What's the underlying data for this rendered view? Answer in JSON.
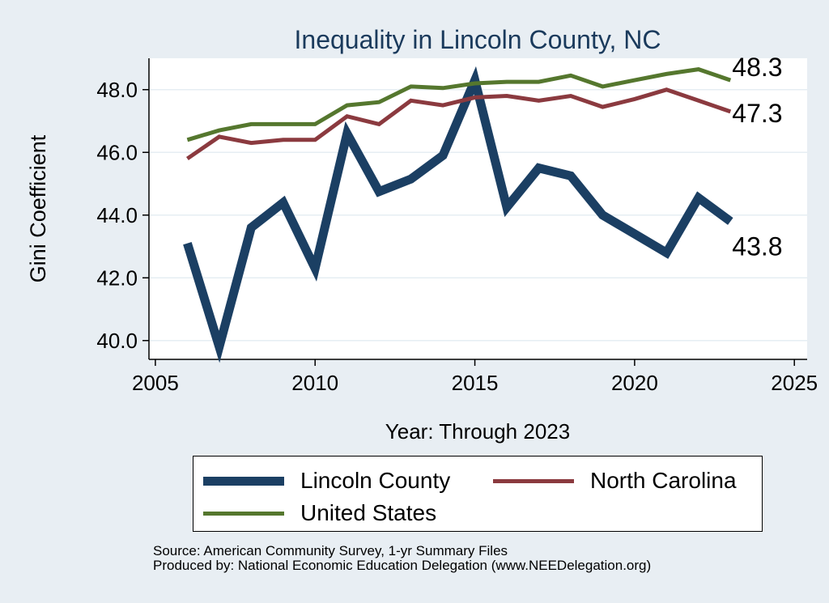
{
  "colors": {
    "background": "#e8eef3",
    "plot_background": "#ffffff",
    "title": "#1a3a5c",
    "gridline": "#e6eef3",
    "lincoln": "#1b3f63",
    "north_carolina": "#8b3a3f",
    "united_states": "#55772e"
  },
  "chart_data": {
    "type": "line",
    "title": "Inequality in Lincoln County, NC",
    "xlabel": "Year: Through 2023",
    "ylabel": "Gini Coefficient",
    "xlim": [
      2004.8,
      2025.4
    ],
    "ylim": [
      39.4,
      49.0
    ],
    "xticks": [
      2005,
      2010,
      2015,
      2020,
      2025
    ],
    "xtick_labels": [
      "2005",
      "2010",
      "2015",
      "2020",
      "2025"
    ],
    "yticks": [
      40,
      42,
      44,
      46,
      48
    ],
    "ytick_labels": [
      "40.0",
      "42.0",
      "44.0",
      "46.0",
      "48.0"
    ],
    "x": [
      2006,
      2007,
      2008,
      2009,
      2010,
      2011,
      2012,
      2013,
      2014,
      2015,
      2016,
      2017,
      2018,
      2019,
      2020,
      2021,
      2022,
      2023
    ],
    "series": [
      {
        "name": "Lincoln County",
        "color_key": "lincoln",
        "stroke": "thick",
        "end_label": "43.8",
        "values": [
          43.1,
          39.8,
          43.6,
          44.4,
          42.3,
          46.6,
          44.75,
          45.15,
          45.9,
          48.3,
          44.25,
          45.5,
          45.25,
          44.0,
          43.4,
          42.8,
          44.55,
          43.8
        ]
      },
      {
        "name": "North Carolina",
        "color_key": "north_carolina",
        "stroke": "thin",
        "end_label": "47.3",
        "values": [
          45.8,
          46.5,
          46.3,
          46.4,
          46.4,
          47.15,
          46.9,
          47.65,
          47.5,
          47.75,
          47.8,
          47.65,
          47.8,
          47.45,
          47.7,
          48.0,
          47.65,
          47.3
        ]
      },
      {
        "name": "United States",
        "color_key": "united_states",
        "stroke": "thin",
        "end_label": "48.3",
        "values": [
          46.4,
          46.7,
          46.9,
          46.9,
          46.9,
          47.5,
          47.6,
          48.1,
          48.05,
          48.2,
          48.25,
          48.25,
          48.45,
          48.1,
          48.3,
          48.5,
          48.65,
          48.3
        ]
      }
    ],
    "legend": {
      "position": "bottom",
      "items": [
        "Lincoln County",
        "North Carolina",
        "United States"
      ]
    }
  },
  "notes": {
    "source": "Source: American Community Survey, 1-yr Summary Files",
    "produced_by": "Produced by: National Economic Education Delegation (www.NEEDelegation.org)"
  }
}
